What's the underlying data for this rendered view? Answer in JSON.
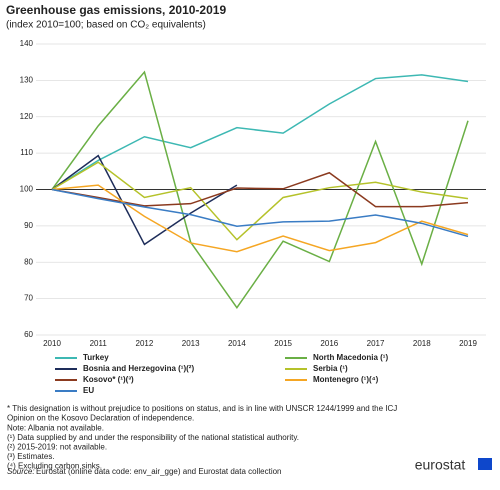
{
  "chart_data": {
    "type": "line",
    "title": "Greenhouse gas emissions, 2010-2019",
    "subtitle": "(index 2010=100; based on CO₂ equivalents)",
    "categories": [
      "2010",
      "2011",
      "2012",
      "2013",
      "2014",
      "2015",
      "2016",
      "2017",
      "2018",
      "2019"
    ],
    "series": [
      {
        "name": "Turkey",
        "color": "#3db8b3",
        "values": [
          100,
          108,
          114.5,
          111.5,
          117,
          115.5,
          123.5,
          130.5,
          131.5,
          129.7
        ]
      },
      {
        "name": "North Macedonia (¹)",
        "color": "#6aaf45",
        "values": [
          100,
          117.5,
          132.3,
          85.5,
          67.5,
          85.8,
          80.2,
          113.2,
          79.5,
          118.9
        ]
      },
      {
        "name": "Bosnia and Herzegovina (¹)(²)",
        "color": "#1e2d5a",
        "values": [
          100,
          109.3,
          84.9,
          93.5,
          101.2,
          null,
          null,
          null,
          null,
          null
        ]
      },
      {
        "name": "Serbia (¹)",
        "color": "#b5c22a",
        "values": [
          100,
          107.5,
          97.8,
          100.5,
          86.2,
          97.8,
          100.5,
          102,
          99.3,
          97.5
        ]
      },
      {
        "name": "Kosovo* (¹)(³)",
        "color": "#8b3a1f",
        "values": [
          100,
          97.8,
          95.5,
          96.1,
          100.4,
          100.2,
          104.6,
          95.3,
          95.3,
          96.4
        ]
      },
      {
        "name": "Montenegro (¹)(⁴)",
        "color": "#f5a623",
        "values": [
          100,
          101.2,
          92.6,
          85.3,
          82.9,
          87.2,
          83.2,
          85.4,
          91.3,
          87.6
        ]
      },
      {
        "name": "EU",
        "color": "#3a7cc4",
        "values": [
          100,
          97.5,
          95.2,
          93.1,
          89.9,
          91.1,
          91.3,
          93,
          90.7,
          87.1
        ]
      }
    ],
    "ylim": [
      60,
      140
    ],
    "yticks": [
      60,
      70,
      80,
      90,
      100,
      110,
      120,
      130,
      140
    ],
    "grid": true,
    "reference_line": 100,
    "notes": [
      "* This designation is without prejudice to positions on status, and is in line with UNSCR 1244/1999 and the ICJ",
      "Opinion on the Kosovo Declaration of independence.",
      "Note: Albania not available.",
      "(¹) Data supplied by and under the responsibility of the national statistical authority.",
      "(²) 2015-2019: not available.",
      "(³) Estimates.",
      "(⁴) Excluding carbon sinks."
    ],
    "source_label": "Source:",
    "source": "Eurostat (online data code: env_air_gge) and Eurostat data collection",
    "logo": "eurostat"
  }
}
